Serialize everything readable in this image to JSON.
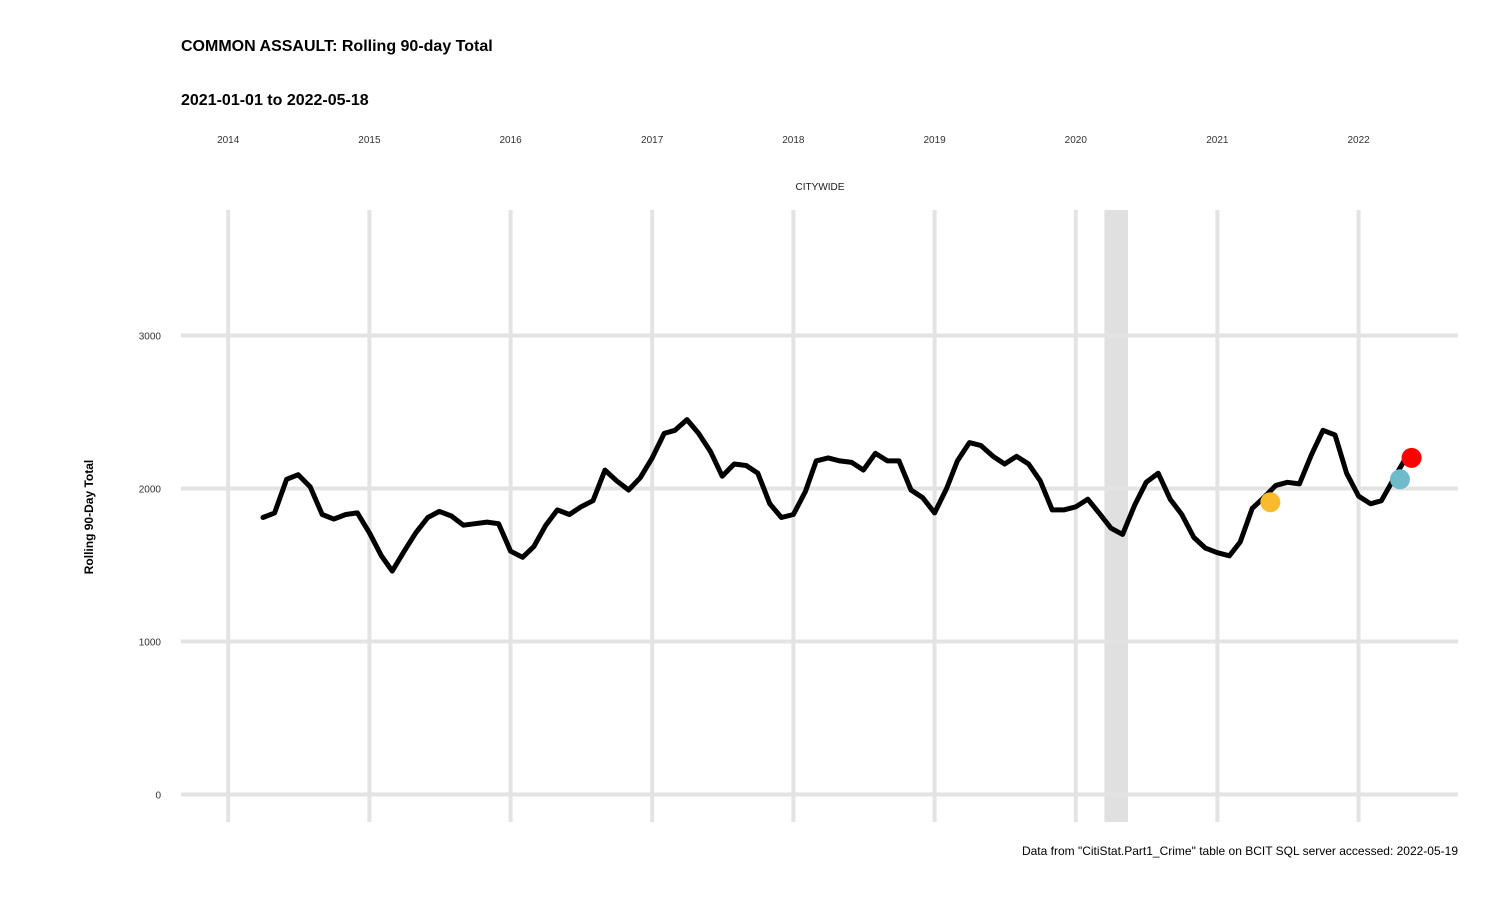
{
  "chart_data": {
    "type": "line",
    "title": "COMMON ASSAULT: Rolling 90-day Total",
    "subtitle": "2021-01-01 to 2022-05-18",
    "caption": "Data from \"CitiStat.Part1_Crime\" table on BCIT SQL server accessed: 2022-05-19",
    "facet_label": "CITYWIDE",
    "xlabel": "",
    "ylabel": "Rolling 90-Day Total",
    "x_ticks": [
      "2014",
      "2015",
      "2016",
      "2017",
      "2018",
      "2019",
      "2020",
      "2021",
      "2022"
    ],
    "y_ticks": [
      0,
      1000,
      2000,
      3000
    ],
    "xlim": [
      "2013-09-01",
      "2022-09-15"
    ],
    "ylim": [
      -180,
      3820
    ],
    "grid": true,
    "shaded_band": {
      "start": "2020-03-15",
      "end": "2020-05-15",
      "color": "#e0e0e0"
    },
    "series": [
      {
        "color": "#000000",
        "x": [
          "2014-04-01",
          "2014-05-01",
          "2014-06-01",
          "2014-07-01",
          "2014-08-01",
          "2014-09-01",
          "2014-10-01",
          "2014-11-01",
          "2014-12-01",
          "2015-01-01",
          "2015-02-01",
          "2015-03-01",
          "2015-04-01",
          "2015-05-01",
          "2015-06-01",
          "2015-07-01",
          "2015-08-01",
          "2015-09-01",
          "2015-10-01",
          "2015-11-01",
          "2015-12-01",
          "2016-01-01",
          "2016-02-01",
          "2016-03-01",
          "2016-04-01",
          "2016-05-01",
          "2016-06-01",
          "2016-07-01",
          "2016-08-01",
          "2016-09-01",
          "2016-10-01",
          "2016-11-01",
          "2016-12-01",
          "2017-01-01",
          "2017-02-01",
          "2017-03-01",
          "2017-04-01",
          "2017-05-01",
          "2017-06-01",
          "2017-07-01",
          "2017-08-01",
          "2017-09-01",
          "2017-10-01",
          "2017-11-01",
          "2017-12-01",
          "2018-01-01",
          "2018-02-01",
          "2018-03-01",
          "2018-04-01",
          "2018-05-01",
          "2018-06-01",
          "2018-07-01",
          "2018-08-01",
          "2018-09-01",
          "2018-10-01",
          "2018-11-01",
          "2018-12-01",
          "2019-01-01",
          "2019-02-01",
          "2019-03-01",
          "2019-04-01",
          "2019-05-01",
          "2019-06-01",
          "2019-07-01",
          "2019-08-01",
          "2019-09-01",
          "2019-10-01",
          "2019-11-01",
          "2019-12-01",
          "2020-01-01",
          "2020-02-01",
          "2020-03-01",
          "2020-04-01",
          "2020-05-01",
          "2020-06-01",
          "2020-07-01",
          "2020-08-01",
          "2020-09-01",
          "2020-10-01",
          "2020-11-01",
          "2020-12-01",
          "2021-01-01",
          "2021-02-01",
          "2021-03-01",
          "2021-04-01",
          "2021-05-01",
          "2021-06-01",
          "2021-07-01",
          "2021-08-01",
          "2021-09-01",
          "2021-10-01",
          "2021-11-01",
          "2021-12-01",
          "2022-01-01",
          "2022-02-01",
          "2022-03-01",
          "2022-04-01",
          "2022-05-01",
          "2022-05-18"
        ],
        "y": [
          1810,
          1840,
          2060,
          2090,
          2010,
          1830,
          1800,
          1830,
          1840,
          1710,
          1560,
          1460,
          1590,
          1710,
          1810,
          1850,
          1820,
          1760,
          1770,
          1780,
          1770,
          1590,
          1550,
          1620,
          1760,
          1860,
          1830,
          1880,
          1920,
          2120,
          2050,
          1990,
          2070,
          2200,
          2360,
          2380,
          2450,
          2360,
          2240,
          2080,
          2160,
          2150,
          2100,
          1900,
          1810,
          1830,
          1980,
          2180,
          2200,
          2180,
          2170,
          2120,
          2230,
          2180,
          2180,
          1990,
          1940,
          1840,
          2000,
          2180,
          2300,
          2280,
          2210,
          2160,
          2210,
          2160,
          2050,
          1860,
          1860,
          1880,
          1930,
          1840,
          1740,
          1700,
          1890,
          2040,
          2100,
          1930,
          1830,
          1680,
          1610,
          1580,
          1560,
          1650,
          1870,
          1940,
          2020,
          2040,
          2030,
          2220,
          2380,
          2350,
          2100,
          1950,
          1900,
          1920,
          2060,
          2190,
          2200
        ]
      }
    ],
    "markers": [
      {
        "date": "2021-05-18",
        "value": 1910,
        "color": "#f8bb2d"
      },
      {
        "date": "2022-04-18",
        "value": 2060,
        "color": "#6dbbcc"
      },
      {
        "date": "2022-05-18",
        "value": 2200,
        "color": "#ff0000"
      }
    ]
  }
}
